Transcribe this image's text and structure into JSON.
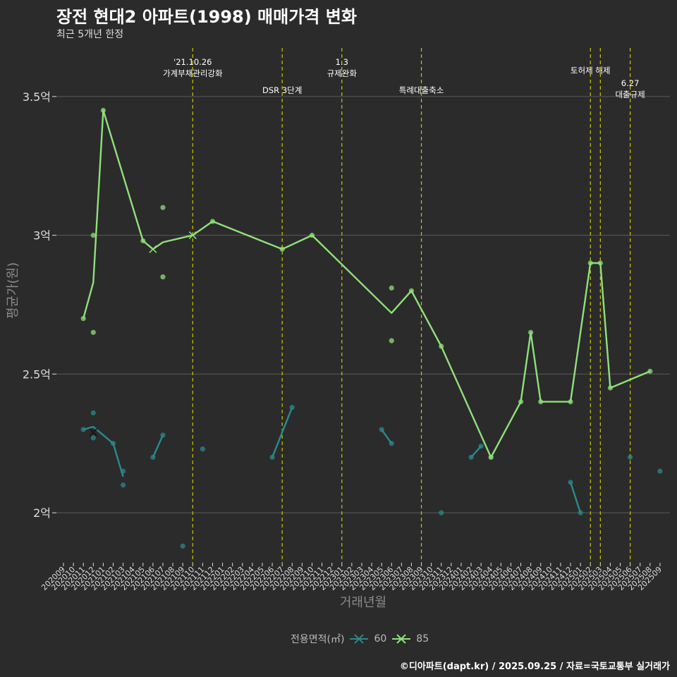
{
  "header": {
    "title": "장전 현대2 아파트(1998) 매매가격 변화",
    "subtitle": "최근 5개년 한정",
    "caption": "©디아파트(dapt.kr) / 2025.09.25 / 자료=국토교통부 실거래가"
  },
  "colors": {
    "background": "#2b2b2b",
    "grid": "#5a5a5a",
    "series60": "#2a8a8c",
    "series85": "#8fe07a",
    "event_line": "#c8c800",
    "axis_text": "#dddddd"
  },
  "legend": {
    "title": "전용면적(㎡)",
    "items": [
      {
        "label": "60",
        "icon": "x-line-icon"
      },
      {
        "label": "85",
        "icon": "x-line-icon"
      }
    ]
  },
  "chart_data": {
    "type": "line",
    "title": "장전 현대2 아파트(1998) 매매가격 변화",
    "xlabel": "거래년월",
    "ylabel": "평균가(원)",
    "x_months": [
      "202009",
      "202010",
      "202011",
      "202012",
      "202101",
      "202102",
      "202103",
      "202104",
      "202105",
      "202106",
      "202107",
      "202108",
      "202109",
      "202110",
      "202111",
      "202112",
      "202201",
      "202202",
      "202203",
      "202204",
      "202205",
      "202206",
      "202207",
      "202208",
      "202209",
      "202210",
      "202211",
      "202212",
      "202301",
      "202302",
      "202303",
      "202304",
      "202305",
      "202306",
      "202307",
      "202308",
      "202309",
      "202310",
      "202311",
      "202312",
      "202401",
      "202402",
      "202403",
      "202404",
      "202405",
      "202406",
      "202407",
      "202408",
      "202409",
      "202410",
      "202411",
      "202412",
      "202501",
      "202502",
      "202503",
      "202504",
      "202505",
      "202506",
      "202507",
      "202508",
      "202509"
    ],
    "y_ticks": [
      {
        "value": 2.0,
        "label": "2억"
      },
      {
        "value": 2.5,
        "label": "2.5억"
      },
      {
        "value": 3.0,
        "label": "3억"
      },
      {
        "value": 3.5,
        "label": "3.5억"
      }
    ],
    "ylim": [
      1.82,
      3.68
    ],
    "series": [
      {
        "name": "60",
        "line_segments": [
          [
            [
              "202011",
              2.3
            ],
            [
              "202012",
              2.31
            ],
            [
              "202102",
              2.25
            ],
            [
              "202103",
              2.13
            ]
          ],
          [
            [
              "202106",
              2.2
            ],
            [
              "202107",
              2.28
            ]
          ],
          [
            [
              "202206",
              2.2
            ],
            [
              "202207",
              2.29
            ],
            [
              "202208",
              2.38
            ]
          ],
          [
            [
              "202305",
              2.3
            ],
            [
              "202306",
              2.25
            ]
          ],
          [
            [
              "202402",
              2.2
            ],
            [
              "202403",
              2.24
            ]
          ],
          [
            [
              "202412",
              2.11
            ],
            [
              "202501",
              2.0
            ]
          ]
        ],
        "points": [
          [
            "202011",
            2.3
          ],
          [
            "202012",
            2.36
          ],
          [
            "202012",
            2.27
          ],
          [
            "202102",
            2.25
          ],
          [
            "202103",
            2.15
          ],
          [
            "202103",
            2.1
          ],
          [
            "202106",
            2.2
          ],
          [
            "202107",
            2.28
          ],
          [
            "202109",
            1.88
          ],
          [
            "202111",
            2.23
          ],
          [
            "202206",
            2.2
          ],
          [
            "202208",
            2.38
          ],
          [
            "202305",
            2.3
          ],
          [
            "202306",
            2.25
          ],
          [
            "202311",
            2.0
          ],
          [
            "202402",
            2.2
          ],
          [
            "202403",
            2.24
          ],
          [
            "202404",
            2.2
          ],
          [
            "202412",
            2.11
          ],
          [
            "202501",
            2.0
          ],
          [
            "202506",
            2.2
          ],
          [
            "202509",
            2.15
          ]
        ],
        "x_markers": [
          [
            "202012",
            2.29
          ]
        ]
      },
      {
        "name": "85",
        "line": [
          [
            "202011",
            2.7
          ],
          [
            "202012",
            2.83
          ],
          [
            "202101",
            3.45
          ],
          [
            "202105",
            2.98
          ],
          [
            "202106",
            2.95
          ],
          [
            "202107",
            2.975
          ],
          [
            "202110",
            3.0
          ],
          [
            "202112",
            3.05
          ],
          [
            "202207",
            2.95
          ],
          [
            "202210",
            3.0
          ],
          [
            "202306",
            2.72
          ],
          [
            "202308",
            2.8
          ],
          [
            "202311",
            2.6
          ],
          [
            "202404",
            2.2
          ],
          [
            "202407",
            2.4
          ],
          [
            "202408",
            2.65
          ],
          [
            "202409",
            2.4
          ],
          [
            "202412",
            2.4
          ],
          [
            "202502",
            2.9
          ],
          [
            "202503",
            2.9
          ],
          [
            "202504",
            2.45
          ],
          [
            "202508",
            2.51
          ]
        ],
        "points": [
          [
            "202011",
            2.7
          ],
          [
            "202012",
            3.0
          ],
          [
            "202012",
            2.65
          ],
          [
            "202101",
            3.45
          ],
          [
            "202105",
            2.98
          ],
          [
            "202107",
            3.1
          ],
          [
            "202107",
            2.85
          ],
          [
            "202112",
            3.05
          ],
          [
            "202207",
            2.95
          ],
          [
            "202210",
            3.0
          ],
          [
            "202306",
            2.81
          ],
          [
            "202306",
            2.62
          ],
          [
            "202308",
            2.8
          ],
          [
            "202311",
            2.6
          ],
          [
            "202404",
            2.2
          ],
          [
            "202407",
            2.4
          ],
          [
            "202408",
            2.65
          ],
          [
            "202409",
            2.4
          ],
          [
            "202412",
            2.4
          ],
          [
            "202502",
            2.9
          ],
          [
            "202503",
            2.9
          ],
          [
            "202504",
            2.45
          ],
          [
            "202508",
            2.51
          ]
        ],
        "x_markers": [
          [
            "202106",
            2.95
          ],
          [
            "202110",
            3.0
          ]
        ]
      }
    ],
    "events": [
      {
        "month": "202110",
        "lines": [
          "'21.10.26",
          "가계부채관리강화"
        ],
        "level": 0
      },
      {
        "month": "202207",
        "lines": [
          "DSR 3단계"
        ],
        "level": 1
      },
      {
        "month": "202301",
        "lines": [
          "1.3",
          "규제완화"
        ],
        "level": 0
      },
      {
        "month": "202309",
        "lines": [
          "특례대출축소"
        ],
        "level": 1
      },
      {
        "month": "202502",
        "lines": [
          "토허제 해제"
        ],
        "level": 0
      },
      {
        "month": "202503",
        "lines": [],
        "level": 0
      },
      {
        "month": "202506",
        "lines": [
          "6.27",
          "대출규제"
        ],
        "level": 2
      }
    ]
  }
}
